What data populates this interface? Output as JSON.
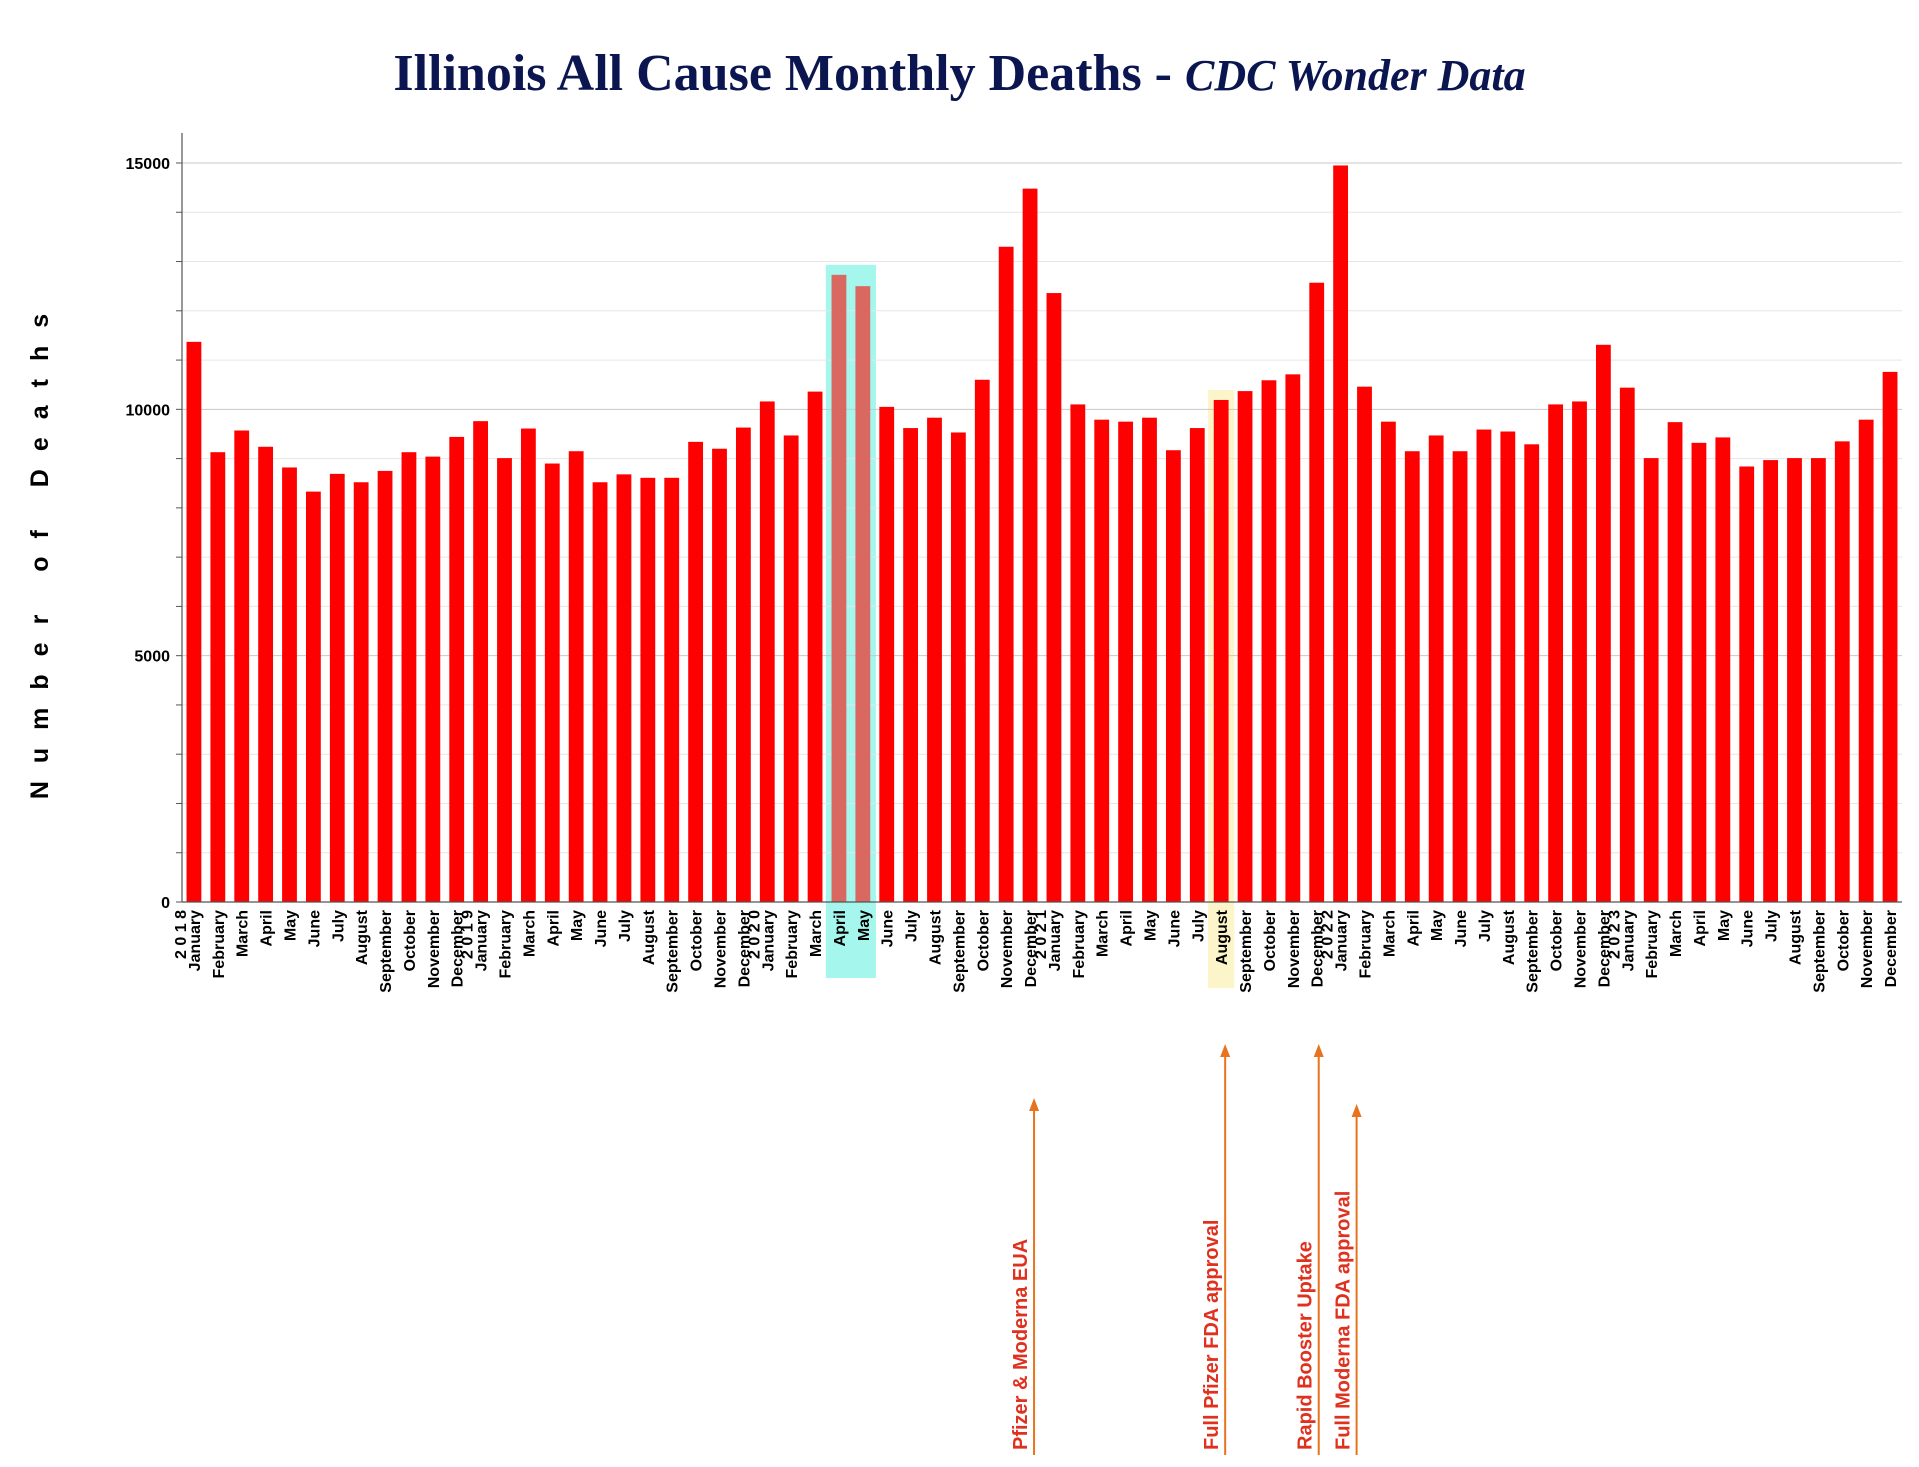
{
  "title": {
    "main": "Illinois All Cause Monthly Deaths - ",
    "sub": "CDC Wonder Data"
  },
  "colors": {
    "bar": "#ff0000",
    "bar_highlight": "#d86860",
    "highlight_teal": "#8ff5ea",
    "highlight_yellow": "#fbf3c0",
    "annotation": "#e8731e",
    "annotation_text": "#e0301e",
    "title": "#0b1651"
  },
  "chart_data": {
    "type": "bar",
    "title": "Illinois All Cause Monthly Deaths - CDC Wonder Data",
    "xlabel": "",
    "ylabel": "Number of Deaths",
    "ylim": [
      0,
      15000
    ],
    "yticks": [
      0,
      5000,
      10000,
      15000
    ],
    "grid": true,
    "categories": [
      "January",
      "February",
      "March",
      "April",
      "May",
      "June",
      "July",
      "August",
      "September",
      "October",
      "November",
      "December",
      "January",
      "February",
      "March",
      "April",
      "May",
      "June",
      "July",
      "August",
      "September",
      "October",
      "November",
      "December",
      "January",
      "February",
      "March",
      "April",
      "May",
      "June",
      "July",
      "August",
      "September",
      "October",
      "November",
      "December",
      "January",
      "February",
      "March",
      "April",
      "May",
      "June",
      "July",
      "August",
      "September",
      "October",
      "November",
      "December",
      "January",
      "February",
      "March",
      "April",
      "May",
      "June",
      "July",
      "August",
      "September",
      "October",
      "November",
      "December",
      "January",
      "February",
      "March",
      "April",
      "May",
      "June",
      "July",
      "August",
      "September",
      "October",
      "November",
      "December"
    ],
    "values": [
      11370,
      9130,
      9570,
      9240,
      8820,
      8330,
      8690,
      8520,
      8750,
      9130,
      9040,
      9440,
      9760,
      9010,
      9610,
      8900,
      9150,
      8520,
      8680,
      8610,
      8610,
      9340,
      9200,
      9630,
      10160,
      9470,
      10360,
      12730,
      12500,
      10050,
      9620,
      9830,
      9530,
      10600,
      13300,
      14480,
      12360,
      10100,
      9790,
      9750,
      9830,
      9170,
      9620,
      10190,
      10370,
      10590,
      10710,
      12570,
      14950,
      10460,
      9750,
      9150,
      9470,
      9150,
      9590,
      9550,
      9290,
      10100,
      10160,
      11310,
      10440,
      9010,
      9740,
      9320,
      9430,
      8840,
      8970,
      9010,
      9010,
      9350,
      9790,
      10760
    ],
    "year_labels": [
      {
        "index": 0,
        "label": "2 0 1 8"
      },
      {
        "index": 12,
        "label": "2 0 1 9"
      },
      {
        "index": 24,
        "label": "2 0 2 0"
      },
      {
        "index": 36,
        "label": "2 0 2 1"
      },
      {
        "index": 48,
        "label": "2 0 2 2"
      },
      {
        "index": 60,
        "label": "2 0 2 3"
      }
    ],
    "highlights": [
      {
        "from": 27,
        "to": 28,
        "color": "teal"
      },
      {
        "from": 43,
        "to": 43,
        "color": "yellow"
      }
    ],
    "annotations": [
      {
        "text": "Pfizer & Moderna EUA",
        "index": 35
      },
      {
        "text": "Full Pfizer FDA approval",
        "index": 43
      },
      {
        "text": "Rapid Booster Uptake",
        "index": 47
      },
      {
        "text": "Full Moderna FDA approval",
        "index": 48
      }
    ]
  }
}
